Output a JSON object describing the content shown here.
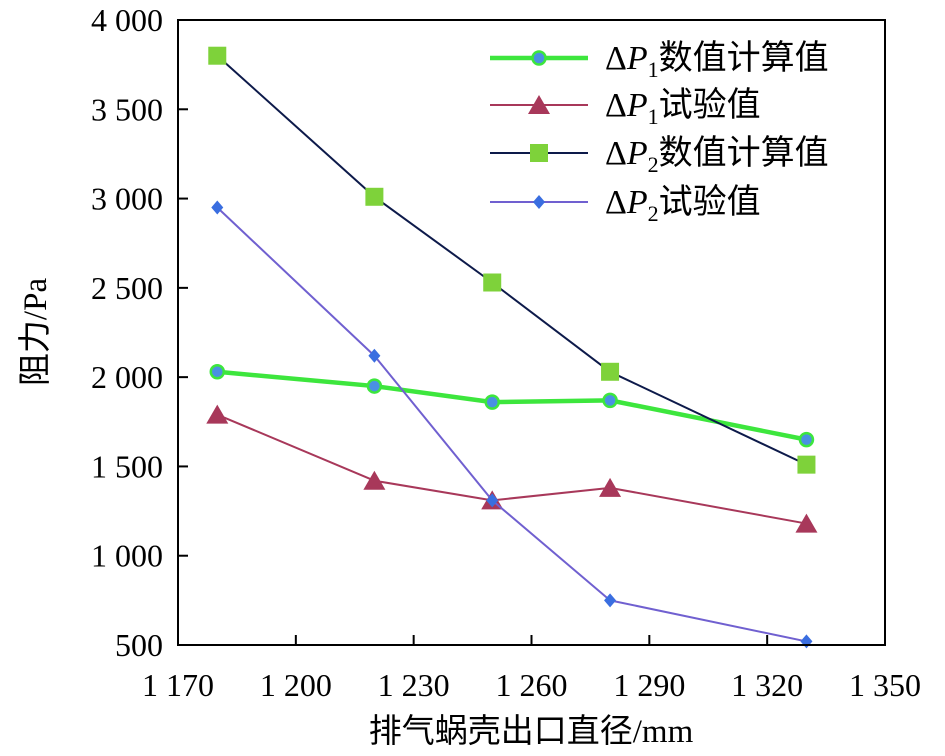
{
  "chart_data": {
    "type": "line",
    "xlabel": "排气蜗壳出口直径/mm",
    "ylabel": "阻力/Pa",
    "xlim": [
      1170,
      1350
    ],
    "ylim": [
      500,
      4000
    ],
    "x_ticks": [
      1170,
      1200,
      1230,
      1260,
      1290,
      1320,
      1350
    ],
    "x_tick_labels": [
      "1 170",
      "1 200",
      "1 230",
      "1 260",
      "1 290",
      "1 320",
      "1 350"
    ],
    "y_ticks": [
      500,
      1000,
      1500,
      2000,
      2500,
      3000,
      3500,
      4000
    ],
    "y_tick_labels": [
      "500",
      "1 000",
      "1 500",
      "2 000",
      "2 500",
      "3 000",
      "3 500",
      "4 000"
    ],
    "legend_position": "top-right",
    "grid": false,
    "x": [
      1180,
      1220,
      1250,
      1280,
      1330
    ],
    "series": [
      {
        "name": "ΔP1数值计算值",
        "delta": "Δ",
        "var": "P",
        "sub": "1",
        "label_rest": "数值计算值",
        "color": "#3de63d",
        "marker": "circle",
        "marker_fill": "#4a90e2",
        "values": [
          2030,
          1950,
          1860,
          1870,
          1650
        ],
        "line_points_y": [
          2030,
          1950,
          1860,
          1870,
          1650
        ]
      },
      {
        "name": "ΔP1试验值",
        "delta": "Δ",
        "var": "P",
        "sub": "1",
        "label_rest": "试验值",
        "color": "#a8385a",
        "marker": "triangle",
        "marker_fill": "#a8385a",
        "values": [
          1790,
          1420,
          1310,
          1380,
          1180
        ],
        "line_points_y": [
          1790,
          1420,
          1310,
          1380,
          1180
        ]
      },
      {
        "name": "ΔP2数值计算值",
        "delta": "Δ",
        "var": "P",
        "sub": "2",
        "label_rest": "数值计算值",
        "color": "#0d1a4a",
        "marker": "square",
        "marker_fill": "#7ed23a",
        "values": [
          3800,
          3010,
          2530,
          2030,
          1510
        ],
        "line_points_y": [
          3800,
          3010,
          2530,
          2030,
          1510
        ]
      },
      {
        "name": "ΔP2试验值",
        "delta": "Δ",
        "var": "P",
        "sub": "2",
        "label_rest": "试验值",
        "color": "#7060d0",
        "marker": "diamond",
        "marker_fill": "#3a6ee0",
        "values": [
          2950,
          2120,
          1310,
          750,
          520
        ],
        "line_points_y": [
          2950,
          2120,
          1310,
          750,
          520
        ]
      }
    ]
  }
}
